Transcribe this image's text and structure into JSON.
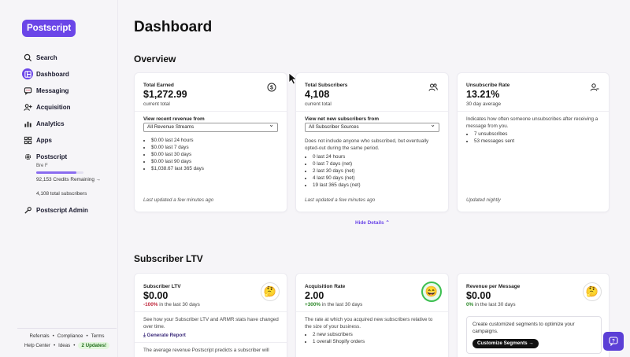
{
  "app": {
    "logo": "Postscript"
  },
  "sidebar": {
    "items": [
      {
        "label": "Search",
        "icon": "search-icon"
      },
      {
        "label": "Dashboard",
        "icon": "dashboard-icon"
      },
      {
        "label": "Messaging",
        "icon": "messaging-icon"
      },
      {
        "label": "Acquisition",
        "icon": "acquisition-icon"
      },
      {
        "label": "Analytics",
        "icon": "analytics-icon"
      },
      {
        "label": "Apps",
        "icon": "apps-icon"
      },
      {
        "label": "Postscript",
        "icon": "gear-icon"
      }
    ],
    "account_name": "Bre F",
    "credits_progress": 0.85,
    "credits": "92,153 Credits Remaining →",
    "total_subscribers": "4,108 total subscribers",
    "admin": "Postscript Admin",
    "footer": {
      "referrals": "Referrals",
      "compliance": "Compliance",
      "terms": "Terms",
      "help_center": "Help Center",
      "ideas": "Ideas",
      "updates": "2 Updates!"
    }
  },
  "page_title": "Dashboard",
  "overview": {
    "title": "Overview",
    "hide_details": "Hide Details ⌃",
    "total_earned": {
      "label": "Total Earned",
      "value": "$1,272.99",
      "sub": "current total",
      "select_label": "View recent revenue from",
      "select_value": "All Revenue Streams",
      "list": [
        "$0.00 last 24 hours",
        "$0.00 last 7 days",
        "$0.00 last 30 days",
        "$0.00 last 90 days",
        "$1,038.67 last 365 days"
      ],
      "footer": "Last updated a few minutes ago"
    },
    "total_subscribers": {
      "label": "Total Subscribers",
      "value": "4,108",
      "sub": "current total",
      "select_label": "View net new subscribers from",
      "select_value": "All Subscriber Sources",
      "desc": "Does not include anyone who subscribed, but eventually opted-out during the same period.",
      "list": [
        "0 last 24 hours",
        "0 last 7 days (net)",
        "2 last 30 days (net)",
        "4 last 90 days (net)",
        "19 last 365 days (net)"
      ],
      "footer": "Last updated a few minutes ago"
    },
    "unsubscribe_rate": {
      "label": "Unsubscribe Rate",
      "value": "13.21%",
      "sub": "30 day average",
      "desc": "Indicates how often someone unsubscribes after receiving a message from you.",
      "list": [
        "7 unsubscribes",
        "53 messages sent"
      ],
      "footer": "Updated nightly"
    }
  },
  "ltv": {
    "title": "Subscriber LTV",
    "subscriber_ltv": {
      "label": "Subscriber LTV",
      "value": "$0.00",
      "pct": "-100%",
      "pct_suffix": " in the last 30 days",
      "desc": "See how your Subscriber LTV and ARMR stats have changed over time.",
      "action": "Generate Report",
      "desc2": "The average revenue Postscript predicts a subscriber will"
    },
    "acquisition_rate": {
      "label": "Acquisition Rate",
      "value": "2.00",
      "pct": "+300%",
      "pct_suffix": " in the last 30 days",
      "desc": "The rate at which you acquired new subscribers relative to the size of your business.",
      "list": [
        "2 new subscribers",
        "1 overall Shopify orders"
      ]
    },
    "revenue_per_message": {
      "label": "Revenue per Message",
      "value": "$0.00",
      "pct": "0%",
      "pct_suffix": " in the last 30 days",
      "segments_text": "Create customized segments to optimize your campaigns.",
      "segments_button": "Customize Segments →"
    }
  },
  "colors": {
    "brand": "#6b46e8",
    "negative": "#c0283c",
    "positive": "#2f8a2c"
  }
}
